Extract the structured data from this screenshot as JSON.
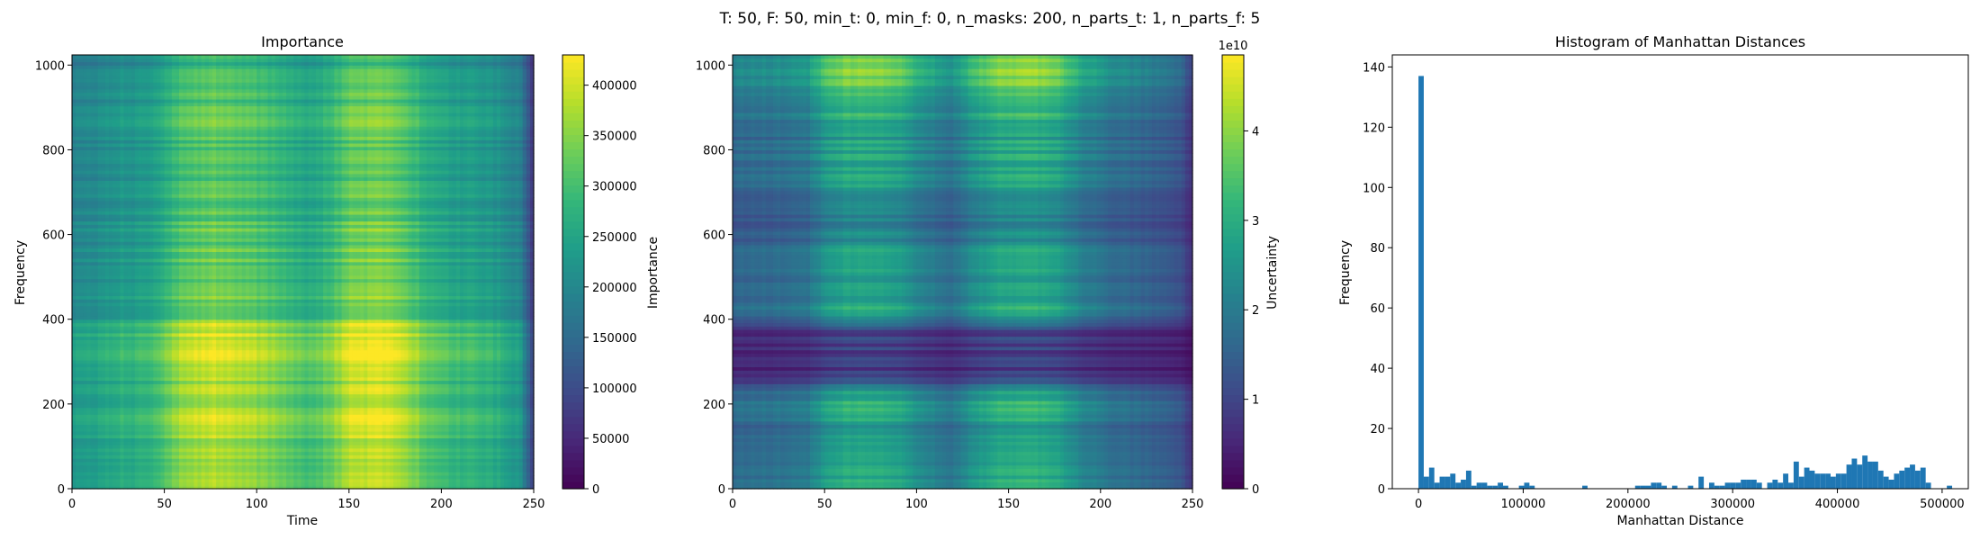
{
  "suptitle": "T: 50, F: 50, min_t: 0, min_f: 0, n_masks: 200, n_parts_t: 1, n_parts_f: 5",
  "chart_data": [
    {
      "type": "heatmap",
      "title": "Importance",
      "xlabel": "Time",
      "ylabel": "Frequency",
      "xlim": [
        0,
        250
      ],
      "ylim": [
        0,
        1024
      ],
      "x_ticks": [
        0,
        50,
        100,
        150,
        200,
        250
      ],
      "y_ticks": [
        0,
        200,
        400,
        600,
        800,
        1000
      ],
      "colormap": "viridis",
      "colorbar": {
        "label": "Importance",
        "range": [
          0,
          430000
        ],
        "ticks": [
          0,
          50000,
          100000,
          150000,
          200000,
          250000,
          300000,
          350000,
          400000
        ],
        "tick_labels": [
          "0",
          "50000",
          "100000",
          "150000",
          "200000",
          "250000",
          "300000",
          "350000",
          "400000"
        ]
      },
      "time_profile": [
        [
          0,
          0.55
        ],
        [
          10,
          0.6
        ],
        [
          25,
          0.65
        ],
        [
          40,
          0.68
        ],
        [
          50,
          0.78
        ],
        [
          60,
          0.9
        ],
        [
          75,
          0.95
        ],
        [
          90,
          0.92
        ],
        [
          105,
          0.86
        ],
        [
          118,
          0.8
        ],
        [
          128,
          0.74
        ],
        [
          140,
          0.82
        ],
        [
          150,
          0.95
        ],
        [
          165,
          0.98
        ],
        [
          180,
          0.93
        ],
        [
          190,
          0.8
        ],
        [
          205,
          0.72
        ],
        [
          220,
          0.68
        ],
        [
          235,
          0.62
        ],
        [
          243,
          0.55
        ],
        [
          246,
          0.38
        ],
        [
          250,
          0.18
        ]
      ],
      "freq_profile": [
        [
          0,
          0.84
        ],
        [
          60,
          0.88
        ],
        [
          120,
          0.9
        ],
        [
          200,
          0.92
        ],
        [
          260,
          0.9
        ],
        [
          330,
          1.0
        ],
        [
          390,
          0.95
        ],
        [
          400,
          0.78
        ],
        [
          450,
          0.82
        ],
        [
          520,
          0.76
        ],
        [
          600,
          0.78
        ],
        [
          680,
          0.74
        ],
        [
          750,
          0.76
        ],
        [
          820,
          0.74
        ],
        [
          880,
          0.8
        ],
        [
          940,
          0.72
        ],
        [
          1024,
          0.66
        ]
      ]
    },
    {
      "type": "heatmap",
      "title": "",
      "xlabel": "",
      "ylabel": "",
      "xlim": [
        0,
        250
      ],
      "ylim": [
        0,
        1024
      ],
      "x_ticks": [
        0,
        50,
        100,
        150,
        200,
        250
      ],
      "y_ticks": [
        0,
        200,
        400,
        600,
        800,
        1000
      ],
      "colormap": "viridis",
      "colorbar": {
        "label": "Uncertainty",
        "offset_text": "1e10",
        "range": [
          0,
          4.85
        ],
        "ticks": [
          0,
          1,
          2,
          3,
          4
        ],
        "tick_labels": [
          "0",
          "1",
          "2",
          "3",
          "4"
        ]
      },
      "time_profile": [
        [
          0,
          0.55
        ],
        [
          20,
          0.58
        ],
        [
          40,
          0.62
        ],
        [
          50,
          0.85
        ],
        [
          60,
          0.95
        ],
        [
          75,
          0.98
        ],
        [
          90,
          0.9
        ],
        [
          105,
          0.72
        ],
        [
          120,
          0.62
        ],
        [
          130,
          0.8
        ],
        [
          145,
          0.97
        ],
        [
          160,
          1.0
        ],
        [
          175,
          0.95
        ],
        [
          190,
          0.72
        ],
        [
          205,
          0.6
        ],
        [
          225,
          0.52
        ],
        [
          245,
          0.4
        ],
        [
          250,
          0.2
        ]
      ],
      "freq_profile": [
        [
          0,
          0.58
        ],
        [
          60,
          0.62
        ],
        [
          120,
          0.52
        ],
        [
          200,
          0.62
        ],
        [
          240,
          0.5
        ],
        [
          260,
          0.2
        ],
        [
          300,
          0.16
        ],
        [
          340,
          0.18
        ],
        [
          380,
          0.22
        ],
        [
          395,
          0.4
        ],
        [
          420,
          0.62
        ],
        [
          480,
          0.54
        ],
        [
          540,
          0.6
        ],
        [
          620,
          0.42
        ],
        [
          680,
          0.5
        ],
        [
          760,
          0.6
        ],
        [
          840,
          0.56
        ],
        [
          900,
          0.66
        ],
        [
          960,
          0.78
        ],
        [
          1024,
          0.82
        ]
      ]
    },
    {
      "type": "bar",
      "title": "Histogram of Manhattan Distances",
      "xlabel": "Manhattan Distance",
      "ylabel": "Frequency",
      "xlim": [
        -25000,
        525000
      ],
      "ylim": [
        0,
        144
      ],
      "x_ticks": [
        0,
        100000,
        200000,
        300000,
        400000,
        500000
      ],
      "y_ticks": [
        0,
        20,
        40,
        60,
        80,
        100,
        120,
        140
      ],
      "bar_color": "#1f77b4",
      "bin_start": 0,
      "bin_width": 5045,
      "counts": [
        137,
        4,
        7,
        2,
        4,
        4,
        5,
        2,
        3,
        6,
        1,
        2,
        2,
        1,
        1,
        2,
        1,
        0,
        0,
        1,
        2,
        1,
        0,
        0,
        0,
        0,
        0,
        0,
        0,
        0,
        0,
        1,
        0,
        0,
        0,
        0,
        0,
        0,
        0,
        0,
        0,
        1,
        1,
        1,
        2,
        2,
        1,
        0,
        1,
        0,
        0,
        1,
        0,
        4,
        0,
        2,
        1,
        1,
        2,
        2,
        2,
        3,
        3,
        3,
        2,
        0,
        2,
        3,
        2,
        5,
        2,
        9,
        4,
        7,
        6,
        5,
        5,
        5,
        4,
        5,
        5,
        8,
        10,
        8,
        11,
        9,
        9,
        6,
        4,
        3,
        5,
        6,
        7,
        8,
        6,
        7,
        2,
        0,
        0,
        0,
        1
      ]
    }
  ]
}
